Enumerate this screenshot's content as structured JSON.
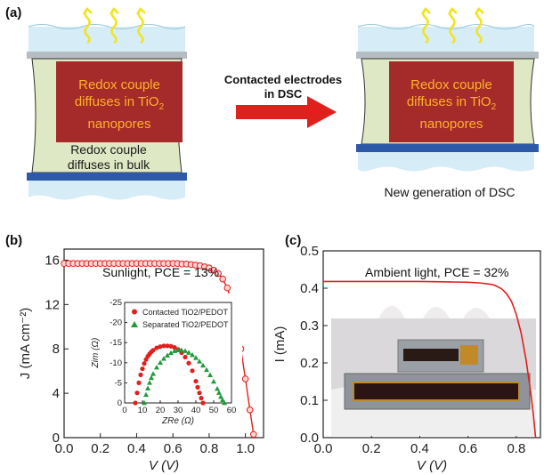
{
  "panel_a": {
    "label": "(a)",
    "left_cell": {
      "inner_text_lines": [
        "Redox couple",
        "diffuses in TiO",
        "nanopores"
      ],
      "subscript": "2",
      "bulk_text_lines": [
        "Redox couple",
        "diffuses in bulk"
      ]
    },
    "arrow_text_lines": [
      "Contacted electrodes",
      "in DSC"
    ],
    "right_cell": {
      "inner_text_lines": [
        "Redox couple",
        "diffuses in TiO",
        "nanopores"
      ],
      "subscript": "2"
    },
    "caption": "New generation of DSC",
    "colors": {
      "cell_fill": "#a52a2a",
      "electrolyte": "#dfe8c4",
      "bottom_electrode": "#2d5aa8",
      "top_electrode": "#b5bcc2",
      "arrow": "#e0201c",
      "sun_rays": "#f2e41c",
      "text_orange": "#ffb22a"
    }
  },
  "panel_b": {
    "label": "(b)",
    "annotation": "Sunlight, PCE = 13%",
    "ylabel": "J (mA cm⁻²)",
    "xlabel": "V (V)",
    "inset": {
      "legend": [
        "Contacted TiO2/PEDOT",
        "Separated TiO2/PEDOT"
      ],
      "xlabel": "ZRe (Ω)",
      "ylabel": "Zim (Ω)"
    }
  },
  "panel_c": {
    "label": "(c)",
    "annotation": "Ambient light, PCE = 32%",
    "ylabel": "I (mA)",
    "xlabel": "V (V)"
  },
  "chart_data": [
    {
      "type": "line",
      "id": "b",
      "xlabel": "V (V)",
      "ylabel": "J (mA cm⁻²)",
      "xlim": [
        0.0,
        1.1
      ],
      "ylim": [
        0,
        17
      ],
      "xticks": [
        "0.0",
        "0.2",
        "0.4",
        "0.6",
        "0.8",
        "1.0"
      ],
      "yticks": [
        "0",
        "4",
        "8",
        "12",
        "16"
      ],
      "series": [
        {
          "color": "#e0201c",
          "marker": "circle",
          "x": [
            0.0,
            0.025,
            0.05,
            0.075,
            0.1,
            0.125,
            0.15,
            0.175,
            0.2,
            0.225,
            0.25,
            0.275,
            0.3,
            0.325,
            0.35,
            0.375,
            0.4,
            0.425,
            0.45,
            0.475,
            0.5,
            0.525,
            0.55,
            0.575,
            0.6,
            0.625,
            0.65,
            0.675,
            0.7,
            0.725,
            0.75,
            0.775,
            0.8,
            0.825,
            0.85,
            0.875,
            0.9,
            0.925,
            0.95,
            0.975,
            1.0,
            1.025,
            1.045
          ],
          "y": [
            15.7,
            15.7,
            15.7,
            15.7,
            15.7,
            15.7,
            15.7,
            15.7,
            15.7,
            15.7,
            15.7,
            15.7,
            15.7,
            15.7,
            15.7,
            15.7,
            15.7,
            15.7,
            15.7,
            15.7,
            15.7,
            15.7,
            15.7,
            15.7,
            15.7,
            15.7,
            15.65,
            15.65,
            15.6,
            15.55,
            15.5,
            15.4,
            15.3,
            15.1,
            14.8,
            14.3,
            13.5,
            12.2,
            10.4,
            8.0,
            5.3,
            2.5,
            0.3
          ]
        }
      ]
    },
    {
      "type": "scatter",
      "id": "b-inset",
      "xlabel": "ZRe (Ω)",
      "ylabel": "Zim (Ω)",
      "xlim": [
        0,
        60
      ],
      "ylim": [
        0,
        -25
      ],
      "xticks": [
        "0",
        "10",
        "20",
        "30",
        "40",
        "50",
        "60"
      ],
      "yticks": [
        "0",
        "-5",
        "-10",
        "-15",
        "-20",
        "-25"
      ],
      "series": [
        {
          "name": "Contacted TiO2/PEDOT",
          "color": "#e0201c",
          "marker": "circle",
          "x": [
            6,
            7,
            8,
            9,
            10,
            11,
            12,
            13,
            14,
            15,
            16,
            18,
            20,
            22,
            24,
            26,
            28,
            30,
            32,
            34,
            36,
            38,
            40,
            41,
            42,
            43,
            44
          ],
          "y": [
            0,
            -2.5,
            -5,
            -7,
            -8.5,
            -9.8,
            -10.8,
            -11.6,
            -12.2,
            -12.7,
            -13.1,
            -13.7,
            -14.0,
            -14.2,
            -14.2,
            -14.1,
            -13.8,
            -13.3,
            -12.5,
            -11.4,
            -9.9,
            -8.0,
            -5.4,
            -3.9,
            -2.5,
            -1.2,
            0
          ]
        },
        {
          "name": "Separated TiO2/PEDOT",
          "color": "#1f9a3a",
          "marker": "triangle",
          "x": [
            11,
            12,
            13,
            14,
            15,
            16,
            18,
            20,
            22,
            24,
            26,
            28,
            30,
            32,
            34,
            36,
            38,
            40,
            42,
            44,
            46,
            48,
            50,
            52,
            53,
            54,
            55,
            56
          ],
          "y": [
            0,
            -2.0,
            -3.6,
            -5.0,
            -6.2,
            -7.2,
            -8.8,
            -10.0,
            -11.0,
            -11.8,
            -12.4,
            -12.9,
            -13.1,
            -13.1,
            -12.9,
            -12.5,
            -11.9,
            -11.2,
            -10.3,
            -9.3,
            -8.2,
            -6.9,
            -5.3,
            -3.5,
            -2.5,
            -1.5,
            -0.7,
            0
          ]
        }
      ]
    },
    {
      "type": "line",
      "id": "c",
      "xlabel": "V (V)",
      "ylabel": "I (mA)",
      "xlim": [
        0.0,
        0.9
      ],
      "ylim": [
        0.0,
        0.5
      ],
      "xticks": [
        "0.0",
        "0.2",
        "0.4",
        "0.6",
        "0.8"
      ],
      "yticks": [
        "0.0",
        "0.1",
        "0.2",
        "0.3",
        "0.4",
        "0.5"
      ],
      "series": [
        {
          "color": "#e0201c",
          "x": [
            0.0,
            0.1,
            0.2,
            0.3,
            0.4,
            0.5,
            0.6,
            0.65,
            0.7,
            0.72,
            0.74,
            0.76,
            0.78,
            0.8,
            0.82,
            0.84,
            0.86,
            0.87,
            0.88
          ],
          "y": [
            0.418,
            0.418,
            0.418,
            0.418,
            0.418,
            0.417,
            0.416,
            0.414,
            0.41,
            0.405,
            0.398,
            0.385,
            0.365,
            0.33,
            0.28,
            0.21,
            0.12,
            0.065,
            0.0
          ]
        }
      ]
    }
  ]
}
